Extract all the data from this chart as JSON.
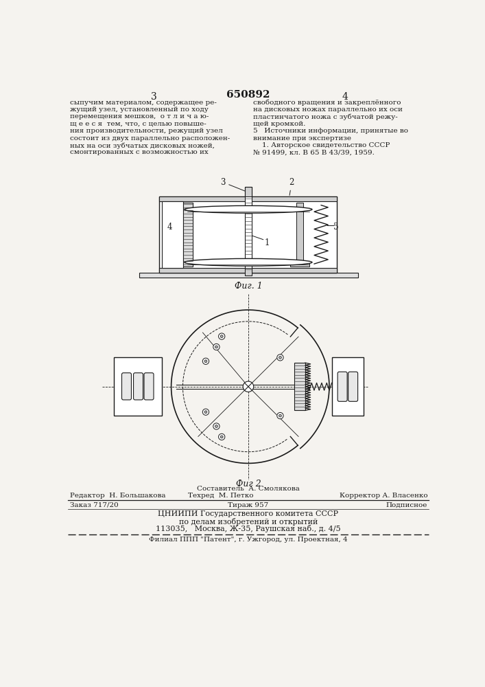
{
  "bg_color": "#f5f3ef",
  "text_color": "#1a1a1a",
  "page_number_left": "3",
  "page_number_center": "650892",
  "page_number_right": "4",
  "col_left_text": [
    "сыпучим материалом, содержащее ре-",
    "жущий узел, установленный по ходу",
    "перемещения мешков,  о т л и ч а ю-",
    "щ е е с я  тем, что, с целью повыше-",
    "ния производительности, режущий узел",
    "состоит из двух параллельно расположен-",
    "ных на оси зубчатых дисковых ножей,",
    "смонтированных с возможностью их"
  ],
  "col_right_text": [
    "свободного вращения и закреплённого",
    "на дисковых ножах параллельно их оси",
    "пластинчатого ножа с зубчатой режу-",
    "щей кромкой.",
    "5   Источники информации, принятые во",
    "внимание при экспертизе",
    "    1. Авторское свидетельство СССР",
    "№ 91499, кл. В 65 В 43/39, 1959."
  ],
  "fig1_label": "Фиг. 1",
  "fig2_label": "Фиг 2",
  "footer_sestavitel": "Составитель  А. Смолякова",
  "footer_redaktor": "Редактор  Н. Большакова",
  "footer_tehred": "Техред  М. Петко",
  "footer_korrektor": "Корректор А. Власенко",
  "footer_zakaz": "Заказ 717/20",
  "footer_tirazh": "Тираж 957",
  "footer_podpisnoe": "Подписное",
  "footer_cniip1": "ЦНИИПИ Государственного комитета СССР",
  "footer_cniip2": "по делам изобретений и открытий",
  "footer_cniip3": "113035,   Москва, Ж-35, Раушская наб., д. 4/5",
  "footer_filial": "Филиал ППП \"Патент\", г. Ужгород, ул. Проектная, 4"
}
